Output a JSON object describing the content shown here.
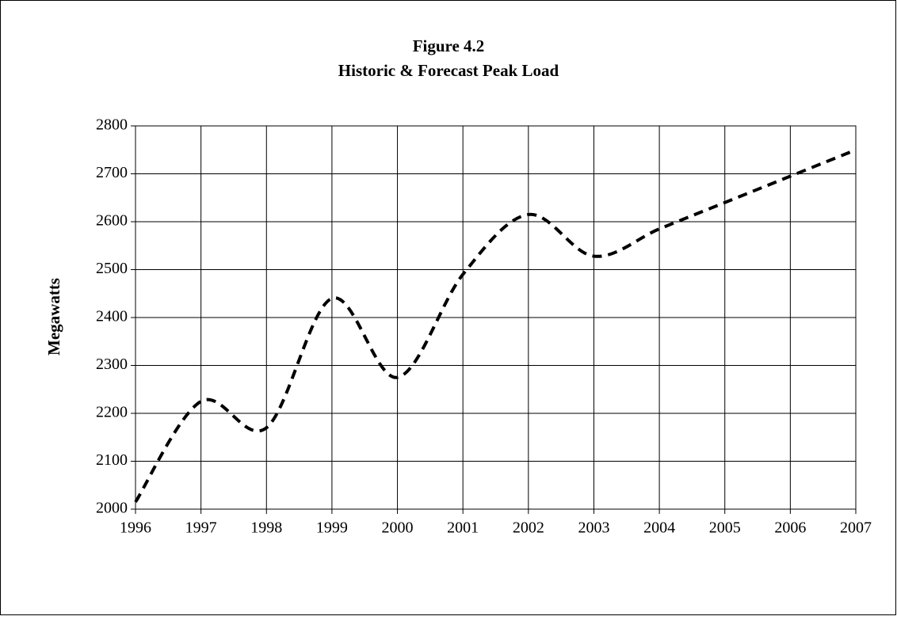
{
  "chart_data": {
    "type": "line",
    "title": "Figure 4.2",
    "subtitle": "Historic & Forecast Peak Load",
    "y_label": "Megawatts",
    "x": [
      1996,
      1997,
      1998,
      1999,
      2000,
      2001,
      2002,
      2003,
      2004,
      2005,
      2006,
      2007
    ],
    "series": [
      {
        "name": "Peak Load",
        "color": "#000000",
        "values": [
          2015,
          2225,
          2170,
          2440,
          2275,
          2490,
          2615,
          2528,
          2585,
          2640,
          2695,
          2750
        ]
      }
    ],
    "xlim": [
      1996,
      2007
    ],
    "xticks": [
      1996,
      1997,
      1998,
      1999,
      2000,
      2001,
      2002,
      2003,
      2004,
      2005,
      2006,
      2007
    ],
    "ylim": [
      2000,
      2800
    ],
    "yticks": [
      2000,
      2100,
      2200,
      2300,
      2400,
      2500,
      2600,
      2700,
      2800
    ],
    "grid": true,
    "smooth": true,
    "dashed": true
  }
}
